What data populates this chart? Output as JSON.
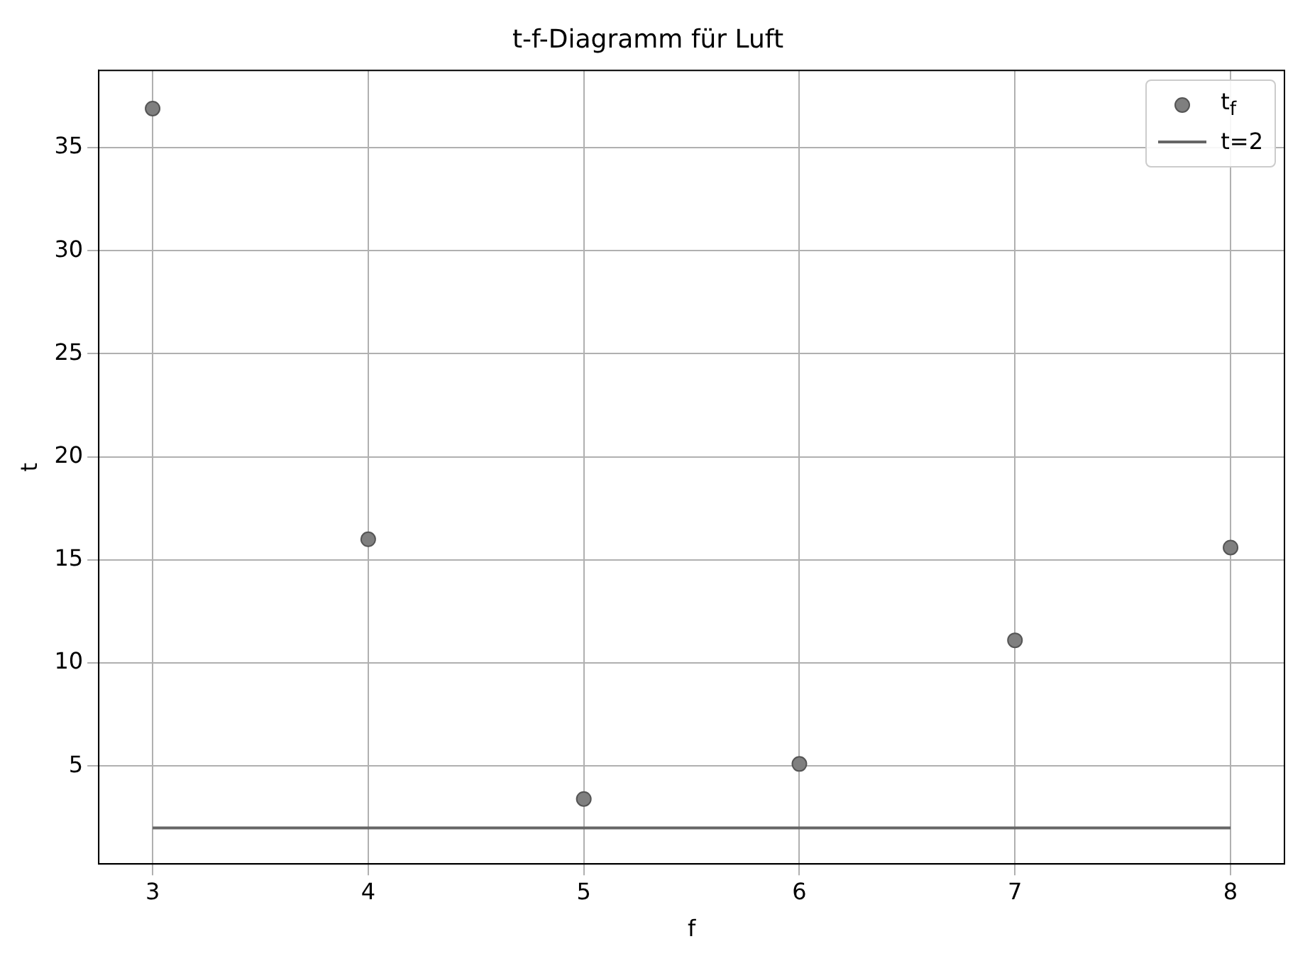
{
  "chart_data": {
    "type": "scatter",
    "title": "t-f-Diagramm für Luft",
    "xlabel": "f",
    "ylabel": "t",
    "xlim": [
      2.75,
      8.25
    ],
    "xticks": [
      3,
      4,
      5,
      6,
      7,
      8
    ],
    "ylim": [
      0.25,
      38.75
    ],
    "yticks": [
      5,
      10,
      15,
      20,
      25,
      30,
      35
    ],
    "grid": true,
    "legend": "top right",
    "series": [
      {
        "name": "t$_{f}$",
        "marker": "circle",
        "color": "#7f7f7f",
        "x": [
          3,
          4,
          5,
          6,
          7,
          8
        ],
        "values": [
          36.9,
          16.0,
          3.4,
          5.1,
          11.1,
          15.6
        ]
      },
      {
        "name": "t=2",
        "type": "line",
        "color": "#666666",
        "x": [
          3,
          8
        ],
        "values": [
          2,
          2
        ],
        "line_style": "solid",
        "marker": "none"
      }
    ]
  }
}
